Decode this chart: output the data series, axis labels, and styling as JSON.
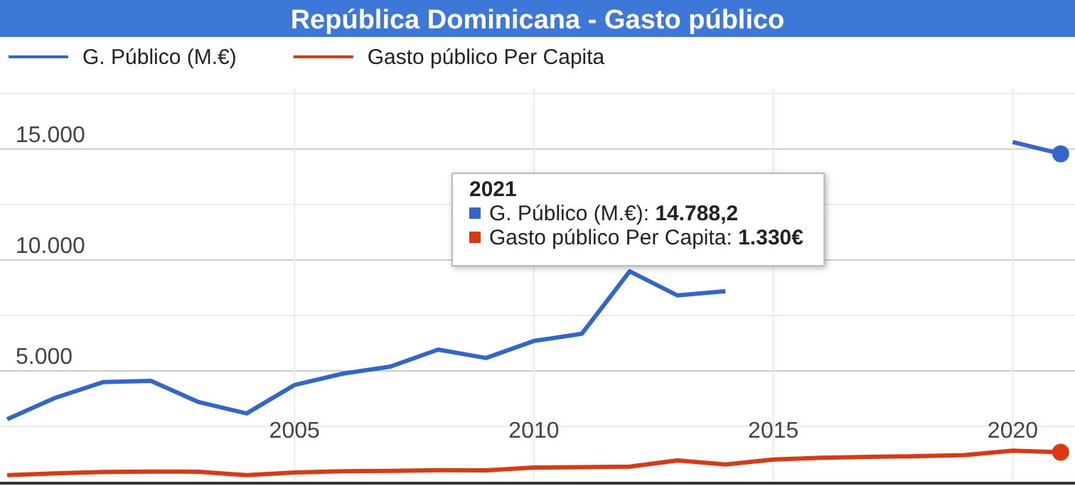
{
  "chart_data": {
    "type": "line",
    "title": "República Dominicana - Gasto público",
    "x": [
      1999,
      2000,
      2001,
      2002,
      2003,
      2004,
      2005,
      2006,
      2007,
      2008,
      2009,
      2010,
      2011,
      2012,
      2013,
      2014,
      2015,
      2016,
      2017,
      2018,
      2019,
      2020,
      2021
    ],
    "series": [
      {
        "name": "G. Público (M.€)",
        "color": "#3366cc",
        "values": [
          2820,
          3780,
          4490,
          4550,
          3590,
          3080,
          4360,
          4870,
          5190,
          5960,
          5580,
          6350,
          6670,
          9490,
          8400,
          8590,
          null,
          null,
          null,
          null,
          null,
          15320,
          14788.2
        ]
      },
      {
        "name": "Gasto público Per Capita",
        "color": "#dc3912",
        "values": [
          300,
          380,
          440,
          460,
          450,
          300,
          420,
          470,
          490,
          520,
          510,
          640,
          660,
          680,
          960,
          780,
          1000,
          1080,
          1120,
          1150,
          1200,
          1400,
          1330
        ]
      },
      {
        "type": "scatter",
        "color": "#3366cc",
        "x": [
          2021
        ],
        "values": [
          14788.2
        ]
      },
      {
        "type": "scatter",
        "color": "#dc3912",
        "x": [
          2021
        ],
        "values": [
          1330
        ]
      }
    ],
    "xlim": [
      1998.85,
      2021.3
    ],
    "xticks": [
      2005,
      2010,
      2015,
      2020
    ],
    "ylim": [
      0,
      17750
    ],
    "yticks": [
      {
        "value": 2500,
        "label": null
      },
      {
        "value": 5000,
        "label": "5.000"
      },
      {
        "value": 7500,
        "label": null
      },
      {
        "value": 10000,
        "label": "10.000"
      },
      {
        "value": 12500,
        "label": null
      },
      {
        "value": 15000,
        "label": "15.000"
      },
      {
        "value": 17500,
        "label": null
      }
    ],
    "grid": true,
    "legend": "top left",
    "line_style": "solid",
    "annotations": [
      "2021",
      "G. Público (M.€): 14.788,2",
      "Gasto público Per Capita: 1.330€"
    ]
  }
}
